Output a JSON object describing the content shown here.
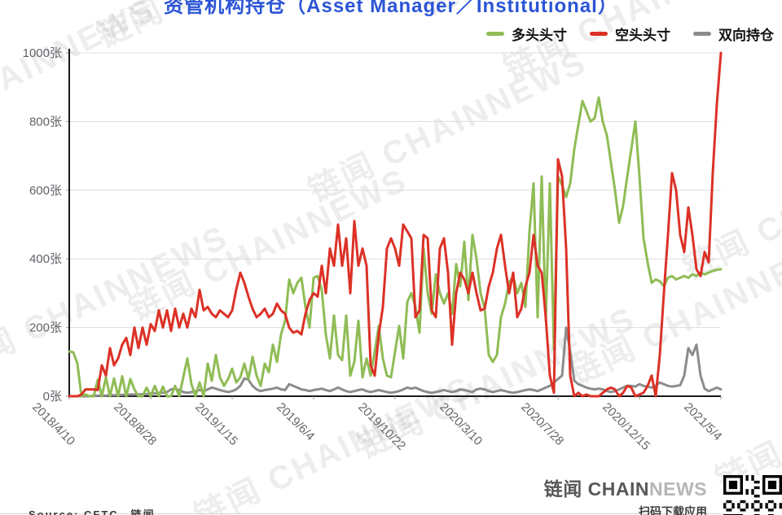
{
  "title": "资管机构持仓（Asset Manager／Institutional）",
  "legend": [
    {
      "label": "多头头寸",
      "color": "#8fbc55"
    },
    {
      "label": "空头头寸",
      "color": "#dc3126"
    },
    {
      "label": "双向持仓",
      "color": "#8c8c8c"
    }
  ],
  "watermark": {
    "text": "链闻 CHAINNEWS"
  },
  "footer": {
    "source": "Source: CFTC，链闻",
    "brand_primary": "链闻 CHAIN",
    "brand_secondary": "NEWS",
    "scan_hint": "扫码下载应用"
  },
  "colors": {
    "title_blue": "#2b55d6",
    "axis_line": "#1a1a1a",
    "grid_line": "#dcdcdc",
    "axis_text": "#5f6368",
    "x_label_text": "#666666"
  },
  "chart_data": {
    "type": "line",
    "title": "资管机构持仓（Asset Manager／Institutional）",
    "unit": "张",
    "x_tick_labels": [
      "2018/4/10",
      "2018/8/28",
      "2019/1/15",
      "2019/6/4",
      "2019/10/22",
      "2020/3/10",
      "2020/7/28",
      "2020/12/15",
      "2021/5/4"
    ],
    "x_tick_every": 20,
    "n_points": 161,
    "ylim": [
      0,
      1000
    ],
    "y_ticks": [
      0,
      200,
      400,
      600,
      800,
      1000
    ],
    "y_tick_suffix": "张",
    "grid": "horizontal",
    "legend_position": "top-right",
    "series": [
      {
        "name": "多头头寸",
        "color": "#8fbc55",
        "values": [
          130,
          128,
          95,
          0,
          5,
          0,
          0,
          48,
          0,
          55,
          0,
          52,
          0,
          58,
          0,
          50,
          20,
          0,
          0,
          25,
          0,
          30,
          0,
          28,
          0,
          0,
          30,
          0,
          55,
          110,
          35,
          0,
          40,
          0,
          95,
          45,
          120,
          55,
          30,
          50,
          80,
          40,
          55,
          95,
          50,
          115,
          60,
          30,
          95,
          70,
          150,
          100,
          180,
          220,
          340,
          300,
          330,
          345,
          260,
          200,
          345,
          350,
          310,
          180,
          110,
          235,
          120,
          105,
          235,
          60,
          100,
          220,
          55,
          110,
          60,
          130,
          205,
          110,
          60,
          55,
          130,
          205,
          110,
          275,
          300,
          260,
          185,
          430,
          300,
          240,
          355,
          300,
          270,
          300,
          240,
          385,
          320,
          450,
          280,
          470,
          400,
          300,
          255,
          120,
          100,
          120,
          230,
          270,
          330,
          350,
          300,
          330,
          260,
          480,
          620,
          230,
          640,
          220,
          620,
          135,
          640,
          615,
          580,
          620,
          720,
          790,
          860,
          830,
          800,
          810,
          870,
          800,
          760,
          680,
          600,
          505,
          555,
          640,
          720,
          800,
          640,
          460,
          390,
          330,
          340,
          335,
          320,
          345,
          350,
          340,
          345,
          350,
          345,
          355,
          350,
          360,
          355,
          360,
          365,
          368,
          370
        ]
      },
      {
        "name": "空头头寸",
        "color": "#dc3126",
        "values": [
          0,
          0,
          0,
          5,
          20,
          20,
          20,
          18,
          90,
          60,
          140,
          90,
          110,
          150,
          170,
          120,
          200,
          140,
          200,
          150,
          210,
          190,
          250,
          200,
          250,
          190,
          255,
          200,
          240,
          200,
          255,
          230,
          310,
          250,
          260,
          240,
          230,
          250,
          240,
          230,
          250,
          310,
          360,
          330,
          290,
          255,
          230,
          240,
          255,
          230,
          240,
          270,
          250,
          240,
          200,
          185,
          190,
          180,
          240,
          280,
          300,
          290,
          380,
          300,
          430,
          380,
          500,
          380,
          460,
          300,
          510,
          380,
          430,
          380,
          90,
          60,
          180,
          260,
          430,
          460,
          430,
          380,
          500,
          480,
          460,
          230,
          250,
          470,
          460,
          250,
          230,
          430,
          460,
          360,
          150,
          300,
          360,
          340,
          300,
          360,
          300,
          250,
          255,
          320,
          360,
          430,
          470,
          380,
          300,
          360,
          230,
          255,
          320,
          360,
          470,
          380,
          360,
          230,
          60,
          10,
          690,
          640,
          430,
          60,
          0,
          10,
          0,
          5,
          0,
          0,
          0,
          10,
          20,
          25,
          20,
          0,
          10,
          30,
          25,
          0,
          5,
          10,
          30,
          60,
          0,
          120,
          300,
          470,
          650,
          600,
          470,
          420,
          550,
          470,
          370,
          350,
          420,
          390,
          650,
          850,
          1000
        ]
      },
      {
        "name": "双向持仓",
        "color": "#8c8c8c",
        "values": [
          0,
          0,
          0,
          0,
          0,
          0,
          2,
          2,
          2,
          2,
          3,
          3,
          3,
          4,
          4,
          5,
          5,
          5,
          6,
          6,
          8,
          8,
          10,
          10,
          12,
          20,
          22,
          18,
          12,
          10,
          12,
          15,
          18,
          15,
          20,
          25,
          22,
          18,
          15,
          12,
          15,
          20,
          30,
          52,
          48,
          30,
          20,
          15,
          18,
          20,
          22,
          25,
          20,
          18,
          35,
          30,
          25,
          20,
          18,
          15,
          18,
          20,
          22,
          18,
          15,
          20,
          25,
          20,
          15,
          12,
          15,
          18,
          20,
          15,
          12,
          15,
          18,
          15,
          12,
          10,
          12,
          15,
          20,
          25,
          22,
          25,
          20,
          15,
          12,
          10,
          12,
          15,
          18,
          15,
          12,
          15,
          20,
          18,
          15,
          12,
          20,
          22,
          20,
          15,
          12,
          15,
          18,
          15,
          12,
          10,
          12,
          15,
          18,
          20,
          18,
          15,
          20,
          25,
          30,
          40,
          50,
          60,
          200,
          130,
          45,
          35,
          30,
          25,
          22,
          20,
          22,
          20,
          15,
          12,
          15,
          20,
          25,
          30,
          30,
          28,
          35,
          30,
          28,
          25,
          30,
          40,
          35,
          30,
          28,
          30,
          32,
          60,
          140,
          120,
          150,
          60,
          22,
          15,
          20,
          25,
          20
        ]
      }
    ]
  }
}
